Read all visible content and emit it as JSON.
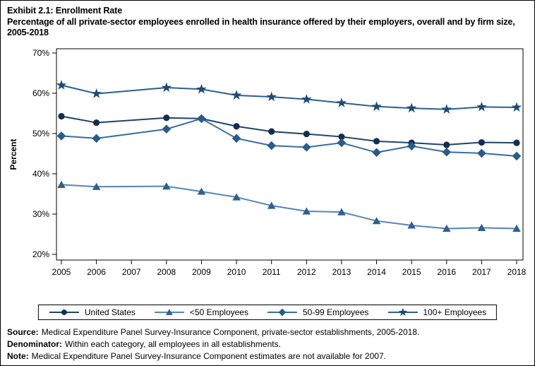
{
  "title": {
    "line1": "Exhibit 2.1: Enrollment Rate",
    "line2": "Percentage of all private-sector employees enrolled in health insurance offered by their employers, overall and by firm size, 2005-2018"
  },
  "chart_data": {
    "type": "line",
    "x": [
      2005,
      2006,
      2007,
      2008,
      2009,
      2010,
      2011,
      2012,
      2013,
      2014,
      2015,
      2016,
      2017,
      2018
    ],
    "xlabel": "",
    "ylabel": "Percent",
    "ylim": [
      20,
      70
    ],
    "ytick_step": 10,
    "ytick_suffix": "%",
    "grid": false,
    "legend_position": "bottom",
    "missing_year": 2007,
    "series": [
      {
        "name": "United States",
        "marker": "circle",
        "marker_color": "#132e4f",
        "line_color": "#1f4566",
        "values": [
          54.3,
          52.7,
          null,
          53.9,
          53.7,
          51.8,
          50.5,
          49.9,
          49.2,
          48.1,
          47.7,
          47.2,
          47.8,
          47.7
        ]
      },
      {
        "name": "<50 Employees",
        "marker": "triangle",
        "marker_color": "#2e6094",
        "line_color": "#5585b5",
        "values": [
          37.3,
          36.8,
          null,
          36.9,
          35.6,
          34.2,
          32.1,
          30.7,
          30.5,
          28.3,
          27.2,
          26.4,
          26.6,
          26.4
        ]
      },
      {
        "name": "50-99 Employees",
        "marker": "diamond",
        "marker_color": "#275c8d",
        "line_color": "#3a6c9e",
        "values": [
          49.4,
          48.8,
          null,
          51.1,
          53.7,
          48.8,
          47.0,
          46.6,
          47.7,
          45.3,
          46.9,
          45.4,
          45.1,
          44.4
        ]
      },
      {
        "name": "100+ Employees",
        "marker": "star",
        "marker_color": "#1c4a77",
        "line_color": "#2c5f92",
        "values": [
          62.0,
          59.9,
          null,
          61.4,
          61.0,
          59.5,
          59.1,
          58.5,
          57.6,
          56.7,
          56.3,
          56.0,
          56.6,
          56.5
        ]
      }
    ]
  },
  "footer": {
    "notes": [
      {
        "label": "Source:",
        "text": "Medical Expenditure Panel Survey-Insurance Component, private-sector establishments, 2005-2018."
      },
      {
        "label": "Denominator:",
        "text": "Within each category, all employees in all establishments."
      },
      {
        "label": "Note:",
        "text": "Medical Expenditure Panel Survey-Insurance Component estimates are not available for 2007."
      }
    ]
  }
}
